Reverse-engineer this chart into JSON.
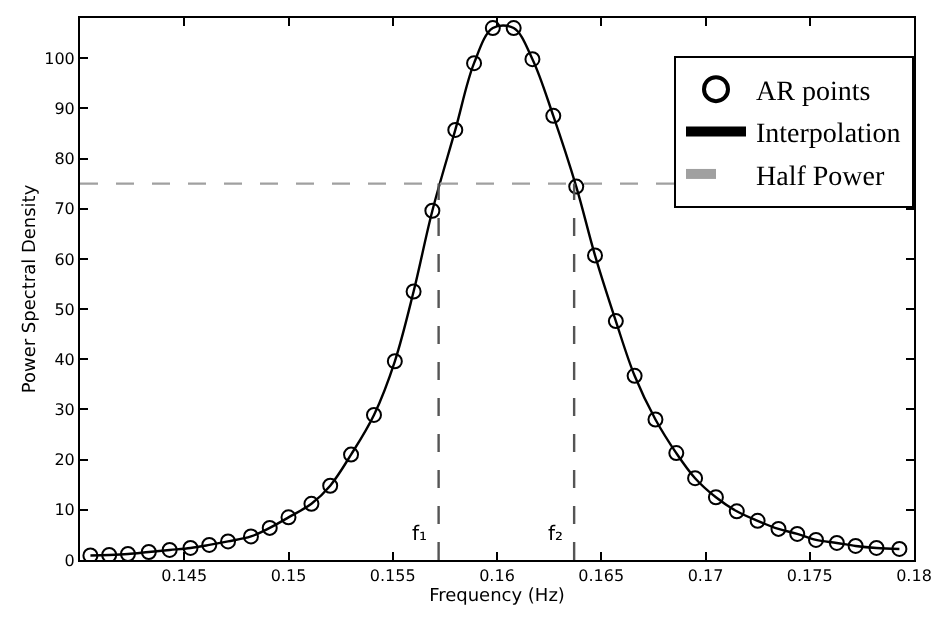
{
  "chart_data": {
    "type": "line",
    "xlabel": "Frequency (Hz)",
    "ylabel": "Power Spectral Density",
    "x": [
      0.1405,
      0.1414,
      0.1423,
      0.1433,
      0.1443,
      0.1453,
      0.1462,
      0.1471,
      0.1482,
      0.1491,
      0.15,
      0.1511,
      0.152,
      0.153,
      0.1541,
      0.1551,
      0.156,
      0.1569,
      0.158,
      0.1589,
      0.1598,
      0.1608,
      0.1617,
      0.1627,
      0.1638,
      0.1647,
      0.1657,
      0.1666,
      0.1676,
      0.1686,
      0.1695,
      0.1705,
      0.1715,
      0.1725,
      0.1735,
      0.1744,
      0.1753,
      0.1763,
      0.1772,
      0.1782,
      0.1793
    ],
    "series": [
      {
        "name": "AR points",
        "type": "scatter",
        "marker": "circle",
        "color": "#000000",
        "values": [
          0.9,
          1.0,
          1.2,
          1.6,
          2.0,
          2.4,
          3.0,
          3.7,
          4.7,
          6.4,
          8.5,
          11.2,
          14.8,
          21,
          28.9,
          39.6,
          53.5,
          69.6,
          85.7,
          99,
          106,
          106,
          99.8,
          88.5,
          74.4,
          60.7,
          47.6,
          36.7,
          28,
          21.3,
          16.3,
          12.5,
          9.7,
          7.8,
          6.2,
          5.2,
          4,
          3.4,
          2.8,
          2.4,
          2.2
        ]
      },
      {
        "name": "Interpolation",
        "line_style": "solid",
        "color": "#000000",
        "values": [
          0.9,
          1.0,
          1.2,
          1.6,
          2.0,
          2.4,
          3.0,
          3.7,
          4.7,
          6.4,
          8.5,
          11.2,
          14.8,
          21,
          28.9,
          39.6,
          53.5,
          69.6,
          85.7,
          99,
          106,
          106,
          99.8,
          88.5,
          74.4,
          60.7,
          47.6,
          36.7,
          28,
          21.3,
          16.3,
          12.5,
          9.7,
          7.8,
          6.2,
          5.2,
          4,
          3.4,
          2.8,
          2.4,
          2.2
        ]
      }
    ],
    "ref_lines": [
      {
        "axis": "y",
        "value": 75,
        "label": "Half Power",
        "color": "#a0a0a0",
        "line_style": "dashed"
      },
      {
        "axis": "x",
        "value": 0.1572,
        "label": "f₁",
        "color": "#555555",
        "line_style": "dashed"
      },
      {
        "axis": "x",
        "value": 0.1637,
        "label": "f₂",
        "color": "#555555",
        "line_style": "dashed"
      }
    ],
    "xlim": [
      0.14,
      0.18
    ],
    "xticks": [
      0.145,
      0.15,
      0.155,
      0.16,
      0.165,
      0.17,
      0.175,
      0.18
    ],
    "ylim": [
      0,
      108
    ],
    "yticks": [
      0,
      10,
      20,
      30,
      40,
      50,
      60,
      70,
      80,
      90,
      100
    ],
    "grid": false,
    "legend": "top right"
  }
}
